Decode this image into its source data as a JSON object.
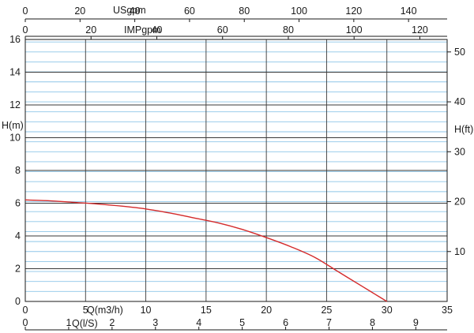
{
  "chart_data": {
    "type": "line",
    "x_axis": {
      "label": "Q(m3/h)",
      "range": [
        0,
        35
      ],
      "ticks": [
        0,
        5,
        10,
        15,
        20,
        25,
        30,
        35
      ],
      "tick_labels": [
        "0",
        "5",
        "10",
        "15",
        "20",
        "25",
        "30",
        "35"
      ]
    },
    "y_axis_left": {
      "label": "H(m)",
      "range": [
        0,
        16
      ],
      "ticks": [
        0,
        2,
        4,
        6,
        8,
        10,
        12,
        14,
        16
      ],
      "tick_labels": [
        "0",
        "2",
        "4",
        "6",
        "8",
        "10",
        "12",
        "14",
        "16"
      ]
    },
    "y_axis_right": {
      "label": "H(ft)",
      "range": [
        0,
        52.5
      ],
      "ticks": [
        10,
        20,
        30,
        40,
        50
      ],
      "tick_labels": [
        "10",
        "20",
        "30",
        "40",
        "50"
      ]
    },
    "x_axis_bottom_secondary": {
      "label": "Q(l/S)",
      "range": [
        0,
        9.722
      ],
      "ticks": [
        0,
        1,
        2,
        3,
        4,
        5,
        6,
        7,
        8,
        9
      ],
      "tick_labels": [
        "0",
        "1",
        "2",
        "3",
        "4",
        "5",
        "6",
        "7",
        "8",
        "9"
      ]
    },
    "x_axis_top_usgpm": {
      "label": "USgpm",
      "range": [
        0,
        154.1
      ],
      "ticks": [
        0,
        20,
        40,
        60,
        80,
        100,
        120,
        140
      ],
      "tick_labels": [
        "0",
        "20",
        "40",
        "60",
        "80",
        "100",
        "120",
        "140"
      ]
    },
    "x_axis_top_impgpm": {
      "label": "IMPgpm",
      "range": [
        0,
        128.3
      ],
      "ticks": [
        0,
        20,
        40,
        60,
        80,
        100,
        120
      ],
      "tick_labels": [
        "0",
        "20",
        "40",
        "60",
        "80",
        "100",
        "120"
      ]
    },
    "grid": {
      "vertical_major": [
        0,
        5,
        10,
        15,
        20,
        25,
        30,
        35
      ],
      "horizontal_major_m": [
        0,
        2,
        4,
        6,
        8,
        10,
        12,
        14,
        16
      ],
      "horizontal_minor_ft": [
        2,
        4,
        6,
        8,
        10,
        12,
        14,
        16,
        18,
        20,
        22,
        24,
        26,
        28,
        30,
        32,
        34,
        36,
        38,
        40,
        42,
        44,
        46,
        48,
        50,
        52
      ]
    },
    "series": [
      {
        "x": [
          0,
          2,
          4,
          6,
          8,
          10,
          12,
          14,
          16,
          18,
          20,
          22,
          24,
          26,
          28,
          29,
          30
        ],
        "y": [
          6.2,
          6.15,
          6.05,
          5.95,
          5.82,
          5.65,
          5.4,
          5.1,
          4.8,
          4.4,
          3.9,
          3.35,
          2.7,
          1.8,
          0.9,
          0.45,
          0
        ]
      }
    ],
    "colors": {
      "curve": "#d42a2a",
      "major_grid": "#3a3a3a",
      "minor_grid": "#8ec6e8",
      "axis": "#1a1a1a"
    }
  }
}
